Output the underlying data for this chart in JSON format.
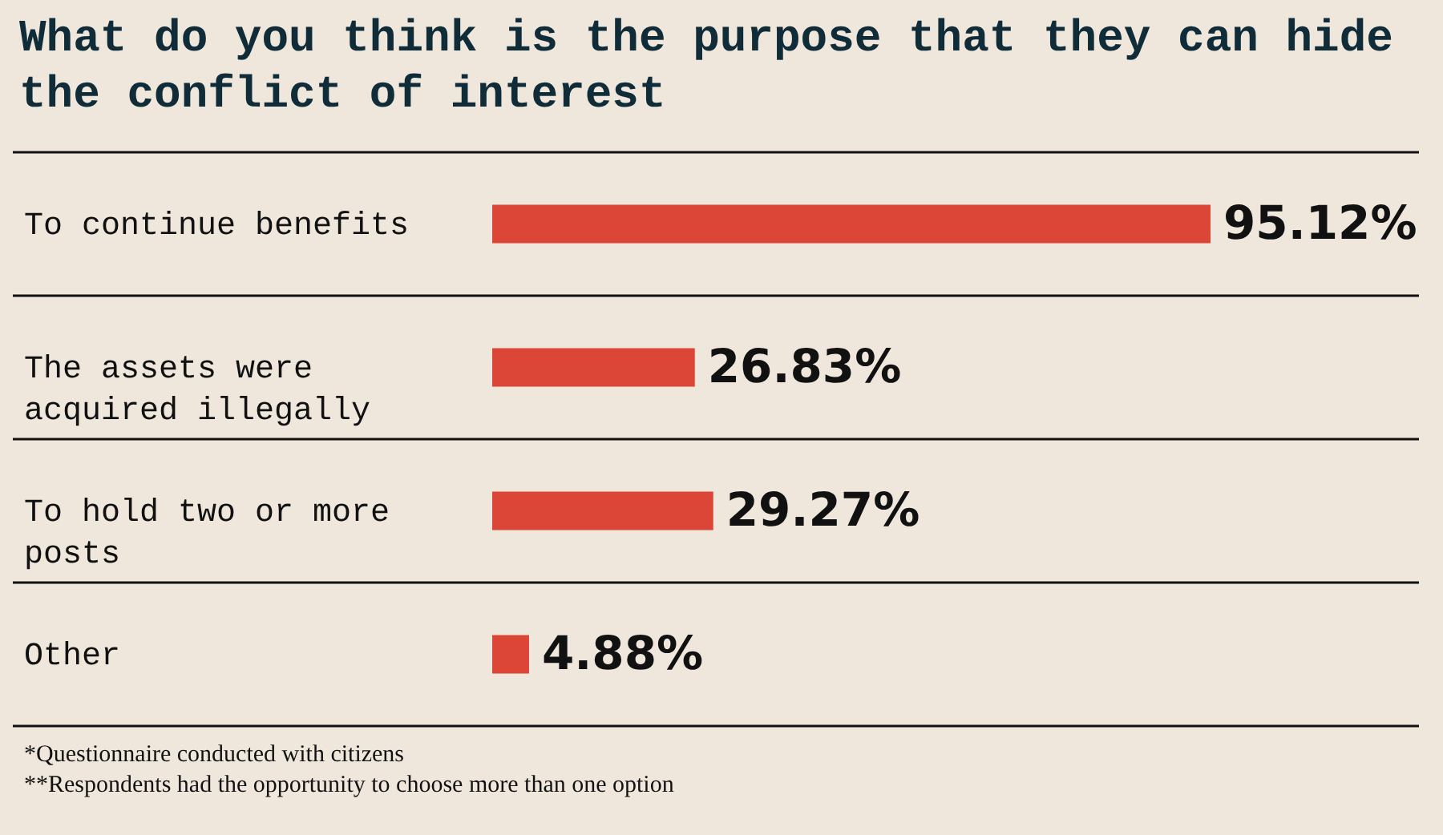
{
  "chart_data": {
    "type": "bar",
    "orientation": "horizontal",
    "title": "What do you think is the purpose that they can hide the conflict of interest",
    "categories": [
      "To continue benefits",
      "The assets were acquired illegally",
      "To hold two or more posts",
      "Other"
    ],
    "values": [
      95.12,
      26.83,
      29.27,
      4.88
    ],
    "value_labels": [
      "95.12%",
      "26.83%",
      "29.27%",
      "4.88%"
    ],
    "color": "#dc4636",
    "grid": "y",
    "annotations": [
      "*Questionnaire conducted with citizens",
      "**Respondents had the opportunity to choose more than one option"
    ]
  }
}
